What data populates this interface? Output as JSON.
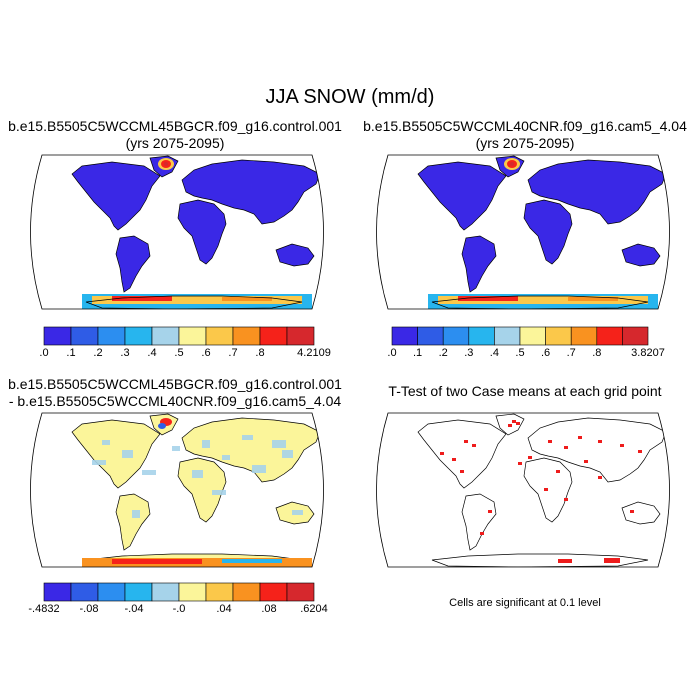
{
  "title": "JJA SNOW (mm/d)",
  "panels": [
    {
      "id": "control",
      "title_line1": "b.e15.B5505C5WCCML45BGCR.f09_g16.control.001",
      "title_line2": "(yrs 2075-2095)",
      "colorbar": {
        "colors": [
          "#3a28e6",
          "#2f5ce6",
          "#2c8ef0",
          "#27b5ee",
          "#a6d3ea",
          "#fbf59a",
          "#fbc84a",
          "#f99220",
          "#f5221a",
          "#d6282d"
        ],
        "labels": [
          ".0",
          ".1",
          ".2",
          ".3",
          ".4",
          ".5",
          ".6",
          ".7",
          ".8",
          "4.2109"
        ]
      }
    },
    {
      "id": "cam5",
      "title_line1": "b.e15.B5505C5WCCML40CNR.f09_g16.cam5_4.04",
      "title_line2": "(yrs 2075-2095)",
      "colorbar": {
        "colors": [
          "#3a28e6",
          "#2f5ce6",
          "#2c8ef0",
          "#27b5ee",
          "#a6d3ea",
          "#fbf59a",
          "#fbc84a",
          "#f99220",
          "#f5221a",
          "#d6282d"
        ],
        "labels": [
          ".0",
          ".1",
          ".2",
          ".3",
          ".4",
          ".5",
          ".6",
          ".7",
          ".8",
          "3.8207"
        ]
      }
    },
    {
      "id": "diff",
      "title_line1": "b.e15.B5505C5WCCML45BGCR.f09_g16.control.001",
      "title_line2": "- b.e15.B5505C5WCCML40CNR.f09_g16.cam5_4.04",
      "colorbar": {
        "colors": [
          "#3a28e6",
          "#2f5ce6",
          "#2c8ef0",
          "#27b5ee",
          "#a6d3ea",
          "#fbf59a",
          "#fbc84a",
          "#f99220",
          "#f5221a",
          "#d6282d"
        ],
        "labels": [
          "-.4832",
          "-.08",
          "-.04",
          "-.0",
          ".04",
          ".08",
          ".6204"
        ]
      }
    },
    {
      "id": "ttest",
      "title": "T-Test of two Case means at each grid point",
      "note": "Cells are significant at 0.1 level"
    }
  ]
}
